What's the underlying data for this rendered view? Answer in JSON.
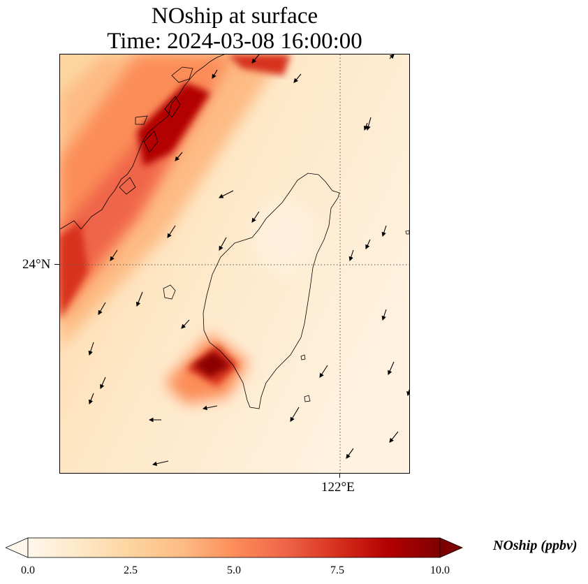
{
  "title": {
    "line1": "NOship at surface",
    "line2": "Time: 2024-03-08 16:00:00"
  },
  "axes": {
    "lat_tick_label": "24°N",
    "lon_tick_label": "122°E",
    "gridline_style": "dotted"
  },
  "colorbar": {
    "label": "NOship (ppbv)",
    "colormap": "OrRd",
    "ticks": [
      "0.0",
      "2.5",
      "5.0",
      "7.5",
      "10.0"
    ],
    "range": [
      0,
      10
    ],
    "extend": "both",
    "colors": [
      "#fff7ec",
      "#fee8c8",
      "#fdd49e",
      "#fdbb84",
      "#fc8d59",
      "#ef6548",
      "#d7301f",
      "#b30000",
      "#7f0000"
    ]
  },
  "map": {
    "region": "Taiwan Strait",
    "features": [
      "coastline",
      "wind-vectors",
      "concentration-field"
    ]
  }
}
